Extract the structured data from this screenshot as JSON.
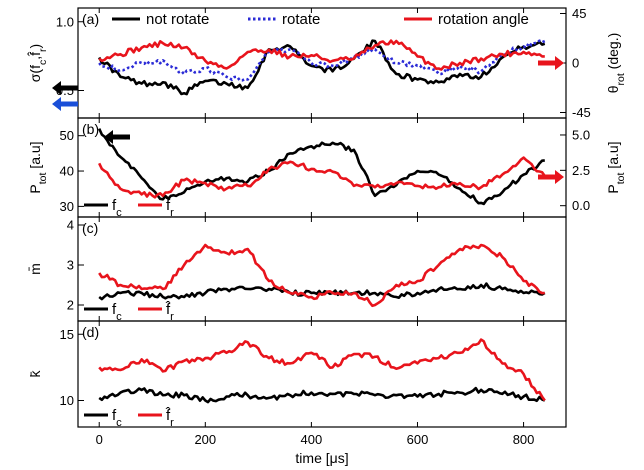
{
  "colors": {
    "fc": "#000000",
    "fr": "#e8141c",
    "rotate": "#2b2bd6",
    "angle": "#e8141c",
    "arrow_blue": "#1a4fd8"
  },
  "xaxis": {
    "label": "time [μs]",
    "ticks": [
      0,
      200,
      400,
      600,
      800
    ],
    "range": [
      -40,
      880
    ]
  },
  "chart_data": [
    {
      "type": "line",
      "panel_label": "(a)",
      "ylabel_left": "σ(f_c,f̂_r)",
      "ylabel_right": "θ_rot (deg.)",
      "ylim_left": [
        0.3,
        1.1
      ],
      "yticks_left": [
        0.5,
        1.0
      ],
      "ylim_right": [
        -50,
        50
      ],
      "yticks_right": [
        -45,
        0,
        45
      ],
      "legend": [
        "not rotate",
        "rotate",
        "rotation angle"
      ],
      "x": [
        0,
        40,
        80,
        120,
        160,
        200,
        240,
        280,
        320,
        360,
        400,
        440,
        480,
        520,
        560,
        600,
        640,
        680,
        720,
        760,
        800,
        840
      ],
      "series": [
        {
          "name": "not rotate",
          "axis": "left",
          "values": [
            0.74,
            0.6,
            0.55,
            0.56,
            0.48,
            0.57,
            0.55,
            0.52,
            0.8,
            0.82,
            0.68,
            0.64,
            0.73,
            0.86,
            0.62,
            0.58,
            0.56,
            0.62,
            0.6,
            0.74,
            0.82,
            0.84
          ]
        },
        {
          "name": "rotate",
          "axis": "left",
          "values": [
            0.7,
            0.65,
            0.7,
            0.72,
            0.62,
            0.66,
            0.6,
            0.58,
            0.78,
            0.8,
            0.7,
            0.68,
            0.74,
            0.8,
            0.7,
            0.68,
            0.62,
            0.68,
            0.64,
            0.76,
            0.82,
            0.86
          ]
        },
        {
          "name": "rotation angle",
          "axis": "right",
          "values": [
            4,
            8,
            14,
            18,
            14,
            2,
            -5,
            10,
            12,
            6,
            7,
            2,
            4,
            16,
            20,
            6,
            -5,
            0,
            4,
            8,
            10,
            6
          ]
        }
      ]
    },
    {
      "type": "line",
      "panel_label": "(b)",
      "ylabel_left": "P_tot [a.u]",
      "ylabel_right": "P_tot [a.u]",
      "ylim_left": [
        27,
        55
      ],
      "yticks_left": [
        30,
        40,
        50
      ],
      "ylim_right": [
        -0.8,
        6.2
      ],
      "yticks_right": [
        0.0,
        2.5,
        5.0
      ],
      "legend": [
        "f_c",
        "f̂_r"
      ],
      "x": [
        0,
        40,
        80,
        120,
        160,
        200,
        240,
        280,
        320,
        360,
        400,
        440,
        480,
        520,
        560,
        600,
        640,
        680,
        720,
        760,
        800,
        840
      ],
      "series": [
        {
          "name": "f_c",
          "axis": "left",
          "values": [
            52,
            44,
            38,
            32,
            34,
            37,
            38,
            37,
            40,
            45,
            47,
            48,
            46,
            33,
            36,
            40,
            39,
            35,
            31,
            34,
            39,
            43
          ]
        },
        {
          "name": "f̂_r",
          "axis": "right",
          "values": [
            3.0,
            1.2,
            0.8,
            0.7,
            1.8,
            1.6,
            1.2,
            1.4,
            2.6,
            3.1,
            2.6,
            2.4,
            1.4,
            1.3,
            1.6,
            1.4,
            1.3,
            1.6,
            1.3,
            2.2,
            3.4,
            2.1
          ]
        }
      ]
    },
    {
      "type": "line",
      "panel_label": "(c)",
      "ylabel_left": "m̄",
      "ylim_left": [
        1.6,
        4.2
      ],
      "yticks_left": [
        2,
        3,
        4
      ],
      "legend": [
        "f_c",
        "f̂_r"
      ],
      "x": [
        0,
        40,
        80,
        120,
        160,
        200,
        240,
        280,
        320,
        360,
        400,
        440,
        480,
        520,
        560,
        600,
        640,
        680,
        720,
        760,
        800,
        840
      ],
      "series": [
        {
          "name": "f_c",
          "axis": "left",
          "values": [
            2.2,
            2.3,
            2.3,
            2.2,
            2.2,
            2.3,
            2.4,
            2.4,
            2.4,
            2.3,
            2.3,
            2.3,
            2.3,
            2.3,
            2.2,
            2.3,
            2.4,
            2.4,
            2.5,
            2.4,
            2.3,
            2.3
          ]
        },
        {
          "name": "f̂_r",
          "axis": "left",
          "values": [
            2.8,
            2.5,
            2.4,
            2.4,
            3.0,
            3.5,
            3.3,
            3.4,
            2.6,
            2.3,
            2.2,
            2.3,
            2.3,
            2.0,
            2.5,
            2.6,
            3.0,
            3.4,
            3.5,
            3.2,
            2.6,
            2.3
          ]
        }
      ]
    },
    {
      "type": "line",
      "panel_label": "(d)",
      "ylabel_left": "k̄",
      "ylim_left": [
        8,
        16
      ],
      "yticks_left": [
        10,
        15
      ],
      "legend": [
        "f_c",
        "f̂_r"
      ],
      "x": [
        0,
        40,
        80,
        120,
        160,
        200,
        240,
        280,
        320,
        360,
        400,
        440,
        480,
        520,
        560,
        600,
        640,
        680,
        720,
        760,
        800,
        840
      ],
      "series": [
        {
          "name": "f_c",
          "axis": "left",
          "values": [
            10.2,
            10.6,
            10.8,
            10.4,
            10.4,
            10.0,
            10.3,
            10.4,
            10.2,
            10.4,
            10.6,
            10.5,
            10.5,
            10.4,
            10.4,
            10.3,
            10.5,
            10.6,
            10.8,
            10.5,
            10.3,
            10.0
          ]
        },
        {
          "name": "f̂_r",
          "axis": "left",
          "values": [
            12.5,
            12.3,
            13.1,
            12.2,
            13.0,
            13.2,
            13.6,
            14.4,
            13.2,
            12.8,
            13.6,
            12.5,
            13.5,
            13.3,
            12.4,
            12.8,
            13.2,
            13.6,
            14.6,
            12.8,
            12.0,
            10.0
          ]
        }
      ]
    }
  ]
}
